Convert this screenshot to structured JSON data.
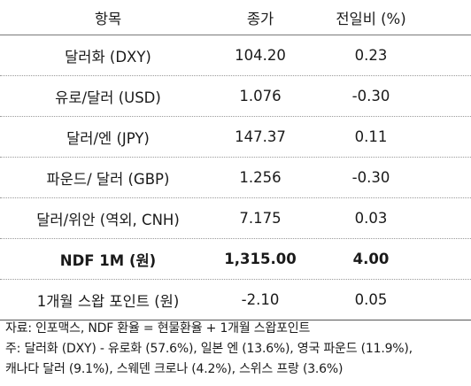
{
  "table": {
    "headers": {
      "name": "항목",
      "price": "종가",
      "change": "전일비 (%)"
    },
    "rows": [
      {
        "name": "달러화 (DXY)",
        "price": "104.20",
        "change": "0.23",
        "bold": false
      },
      {
        "name": "유로/달러 (USD)",
        "price": "1.076",
        "change": "-0.30",
        "bold": false
      },
      {
        "name": "달러/엔 (JPY)",
        "price": "147.37",
        "change": "0.11",
        "bold": false
      },
      {
        "name": "파운드/ 달러 (GBP)",
        "price": "1.256",
        "change": "-0.30",
        "bold": false
      },
      {
        "name": "달러/위안 (역외, CNH)",
        "price": "7.175",
        "change": "0.03",
        "bold": false
      },
      {
        "name": "NDF 1M (원)",
        "price": "1,315.00",
        "change": "4.00",
        "bold": true
      },
      {
        "name": "1개월 스왑 포인트 (원)",
        "price": "-2.10",
        "change": "0.05",
        "bold": false
      }
    ]
  },
  "notes": [
    "자료: 인포맥스, NDF 환율 = 현물환율 + 1개월 스왑포인트",
    "주: 달러화 (DXY) - 유로화 (57.6%), 일본 엔 (13.6%), 영국 파운드 (11.9%),",
    "캐나다 달러 (9.1%), 스웨덴 크로나 (4.2%), 스위스 프랑 (3.6%)"
  ]
}
